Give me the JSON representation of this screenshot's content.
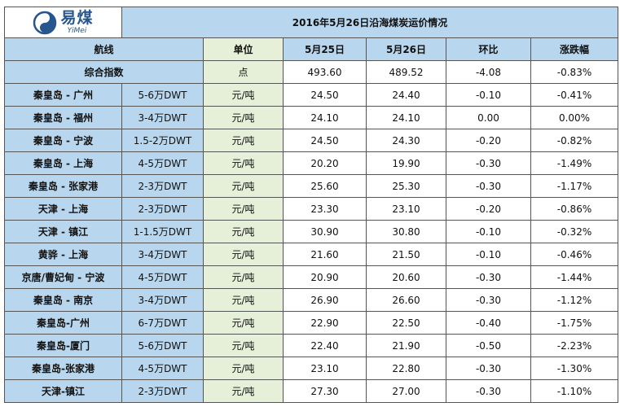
{
  "logo": {
    "cn": "易煤",
    "en": "YiMei"
  },
  "title": "2016年5月26日沿海煤炭运价情况",
  "headers": {
    "route": "航线",
    "unit": "单位",
    "d1": "5月25日",
    "d2": "5月26日",
    "change": "环比",
    "pct": "涨跌幅"
  },
  "index_row": {
    "name": "综合指数",
    "unit": "点",
    "d1": "493.60",
    "d2": "489.52",
    "change": "-4.08",
    "pct": "-0.83%"
  },
  "rows": [
    {
      "route": "秦皇岛 - 广州",
      "ship": "5-6万DWT",
      "unit": "元/吨",
      "d1": "24.50",
      "d2": "24.40",
      "change": "-0.10",
      "pct": "-0.41%"
    },
    {
      "route": "秦皇岛 - 福州",
      "ship": "3-4万DWT",
      "unit": "元/吨",
      "d1": "24.10",
      "d2": "24.10",
      "change": "0.00",
      "pct": "0.00%"
    },
    {
      "route": "秦皇岛 - 宁波",
      "ship": "1.5-2万DWT",
      "unit": "元/吨",
      "d1": "24.50",
      "d2": "24.30",
      "change": "-0.20",
      "pct": "-0.82%"
    },
    {
      "route": "秦皇岛 - 上海",
      "ship": "4-5万DWT",
      "unit": "元/吨",
      "d1": "20.20",
      "d2": "19.90",
      "change": "-0.30",
      "pct": "-1.49%"
    },
    {
      "route": "秦皇岛 - 张家港",
      "ship": "2-3万DWT",
      "unit": "元/吨",
      "d1": "25.60",
      "d2": "25.30",
      "change": "-0.30",
      "pct": "-1.17%"
    },
    {
      "route": "天津 - 上海",
      "ship": "2-3万DWT",
      "unit": "元/吨",
      "d1": "23.30",
      "d2": "23.10",
      "change": "-0.20",
      "pct": "-0.86%"
    },
    {
      "route": "天津 - 镇江",
      "ship": "1-1.5万DWT",
      "unit": "元/吨",
      "d1": "30.90",
      "d2": "30.80",
      "change": "-0.10",
      "pct": "-0.32%"
    },
    {
      "route": "黄骅 - 上海",
      "ship": "3-4万DWT",
      "unit": "元/吨",
      "d1": "21.60",
      "d2": "21.50",
      "change": "-0.10",
      "pct": "-0.46%"
    },
    {
      "route": "京唐/曹妃甸 - 宁波",
      "ship": "4-5万DWT",
      "unit": "元/吨",
      "d1": "20.90",
      "d2": "20.60",
      "change": "-0.30",
      "pct": "-1.44%"
    },
    {
      "route": "秦皇岛 - 南京",
      "ship": "3-4万DWT",
      "unit": "元/吨",
      "d1": "26.90",
      "d2": "26.60",
      "change": "-0.30",
      "pct": "-1.12%"
    },
    {
      "route": "秦皇岛-广州",
      "ship": "6-7万DWT",
      "unit": "元/吨",
      "d1": "22.90",
      "d2": "22.50",
      "change": "-0.40",
      "pct": "-1.75%"
    },
    {
      "route": "秦皇岛-厦门",
      "ship": "5-6万DWT",
      "unit": "元/吨",
      "d1": "22.40",
      "d2": "21.90",
      "change": "-0.50",
      "pct": "-2.23%"
    },
    {
      "route": "秦皇岛-张家港",
      "ship": "4-5万DWT",
      "unit": "元/吨",
      "d1": "23.10",
      "d2": "22.80",
      "change": "-0.30",
      "pct": "-1.30%"
    },
    {
      "route": "天津-镇江",
      "ship": "2-3万DWT",
      "unit": "元/吨",
      "d1": "27.30",
      "d2": "27.00",
      "change": "-0.30",
      "pct": "-1.10%"
    }
  ]
}
